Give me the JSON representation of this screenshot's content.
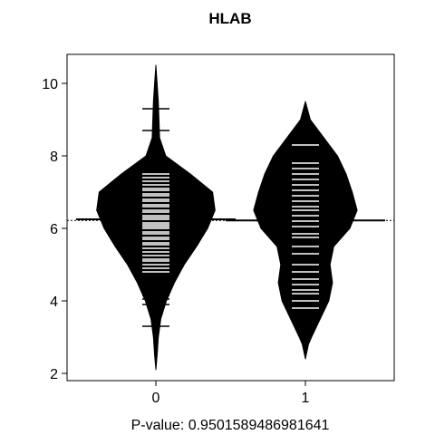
{
  "chart_data": {
    "type": "beanplot",
    "title": "HLAB",
    "xlabel": "P-value: 0.9501589486981641",
    "ylabel": "",
    "categories": [
      "0",
      "1"
    ],
    "ylim": [
      1.8,
      10.8
    ],
    "yticks": [
      "2",
      "4",
      "6",
      "8",
      "10"
    ],
    "overall_mean": 6.22,
    "series": [
      {
        "name": "0",
        "mean": 6.25,
        "density_profile": [
          [
            2.1,
            0.0
          ],
          [
            2.5,
            0.02
          ],
          [
            3.0,
            0.04
          ],
          [
            3.5,
            0.08
          ],
          [
            4.0,
            0.17
          ],
          [
            4.5,
            0.3
          ],
          [
            5.0,
            0.46
          ],
          [
            5.5,
            0.66
          ],
          [
            6.0,
            0.84
          ],
          [
            6.5,
            0.96
          ],
          [
            7.0,
            0.92
          ],
          [
            7.5,
            0.56
          ],
          [
            8.0,
            0.16
          ],
          [
            8.5,
            0.06
          ],
          [
            9.0,
            0.05
          ],
          [
            9.5,
            0.04
          ],
          [
            10.0,
            0.02
          ],
          [
            10.5,
            0.0
          ]
        ],
        "observations": [
          3.3,
          3.9,
          4.05,
          4.15,
          4.2,
          4.8,
          4.9,
          5.0,
          5.1,
          5.15,
          5.25,
          5.35,
          5.45,
          5.55,
          5.6,
          5.7,
          5.75,
          5.85,
          5.9,
          6.0,
          6.05,
          6.1,
          6.15,
          6.25,
          6.3,
          6.35,
          6.45,
          6.5,
          6.6,
          6.65,
          6.75,
          6.8,
          6.9,
          6.95,
          7.05,
          7.1,
          7.2,
          7.3,
          7.4,
          7.5,
          8.7,
          9.3
        ]
      },
      {
        "name": "1",
        "mean": 6.22,
        "density_profile": [
          [
            2.4,
            0.0
          ],
          [
            2.8,
            0.05
          ],
          [
            3.0,
            0.1
          ],
          [
            3.5,
            0.24
          ],
          [
            4.0,
            0.38
          ],
          [
            4.5,
            0.44
          ],
          [
            5.0,
            0.4
          ],
          [
            5.5,
            0.46
          ],
          [
            6.0,
            0.72
          ],
          [
            6.5,
            0.84
          ],
          [
            7.0,
            0.76
          ],
          [
            7.5,
            0.66
          ],
          [
            8.0,
            0.52
          ],
          [
            8.5,
            0.3
          ],
          [
            9.0,
            0.08
          ],
          [
            9.5,
            0.0
          ]
        ],
        "observations": [
          3.8,
          4.0,
          4.2,
          4.3,
          4.45,
          4.6,
          4.8,
          5.0,
          5.3,
          5.5,
          5.75,
          5.85,
          6.05,
          6.2,
          6.35,
          6.5,
          6.6,
          6.75,
          6.9,
          7.05,
          7.2,
          7.35,
          7.5,
          7.65,
          7.8,
          8.3
        ]
      }
    ]
  }
}
